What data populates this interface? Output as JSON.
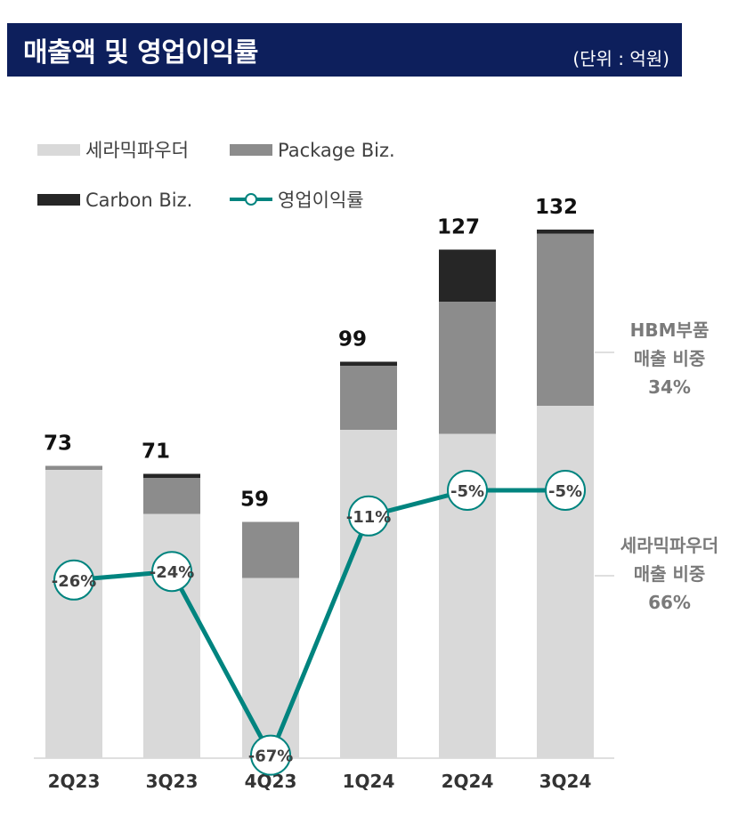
{
  "header": {
    "title": "매출액 및 영업이익률",
    "unit": "(단위 : 억원)"
  },
  "colors": {
    "header_bg": "#0d1f5c",
    "ceramic": "#d9d9d9",
    "package": "#8c8c8c",
    "carbon": "#262626",
    "margin_line": "#00847f"
  },
  "chart_data": {
    "type": "bar",
    "stacked": true,
    "categories": [
      "2Q23",
      "3Q23",
      "4Q23",
      "1Q24",
      "2Q24",
      "3Q24"
    ],
    "totals": [
      73,
      71,
      59,
      99,
      127,
      132
    ],
    "series": [
      {
        "name": "세라믹파우더",
        "values": [
          72,
          61,
          45,
          82,
          81,
          88
        ]
      },
      {
        "name": "Package Biz.",
        "values": [
          1,
          9,
          14,
          16,
          33,
          43
        ]
      },
      {
        "name": "Carbon Biz.",
        "values": [
          0,
          1,
          0,
          1,
          13,
          1
        ]
      }
    ],
    "line": {
      "name": "영업이익률",
      "values": [
        -26,
        -24,
        -67,
        -11,
        -5,
        -5
      ],
      "labels": [
        "-26%",
        "-24%",
        "-67%",
        "-11%",
        "-5%",
        "-5%"
      ]
    },
    "ylim": [
      0,
      140
    ],
    "legend": "top-left",
    "annotations": [
      {
        "lines": [
          "HBM부품",
          "매출 비중",
          "34%"
        ]
      },
      {
        "lines": [
          "세라믹파우더",
          "매출 비중",
          "66%"
        ]
      }
    ]
  }
}
